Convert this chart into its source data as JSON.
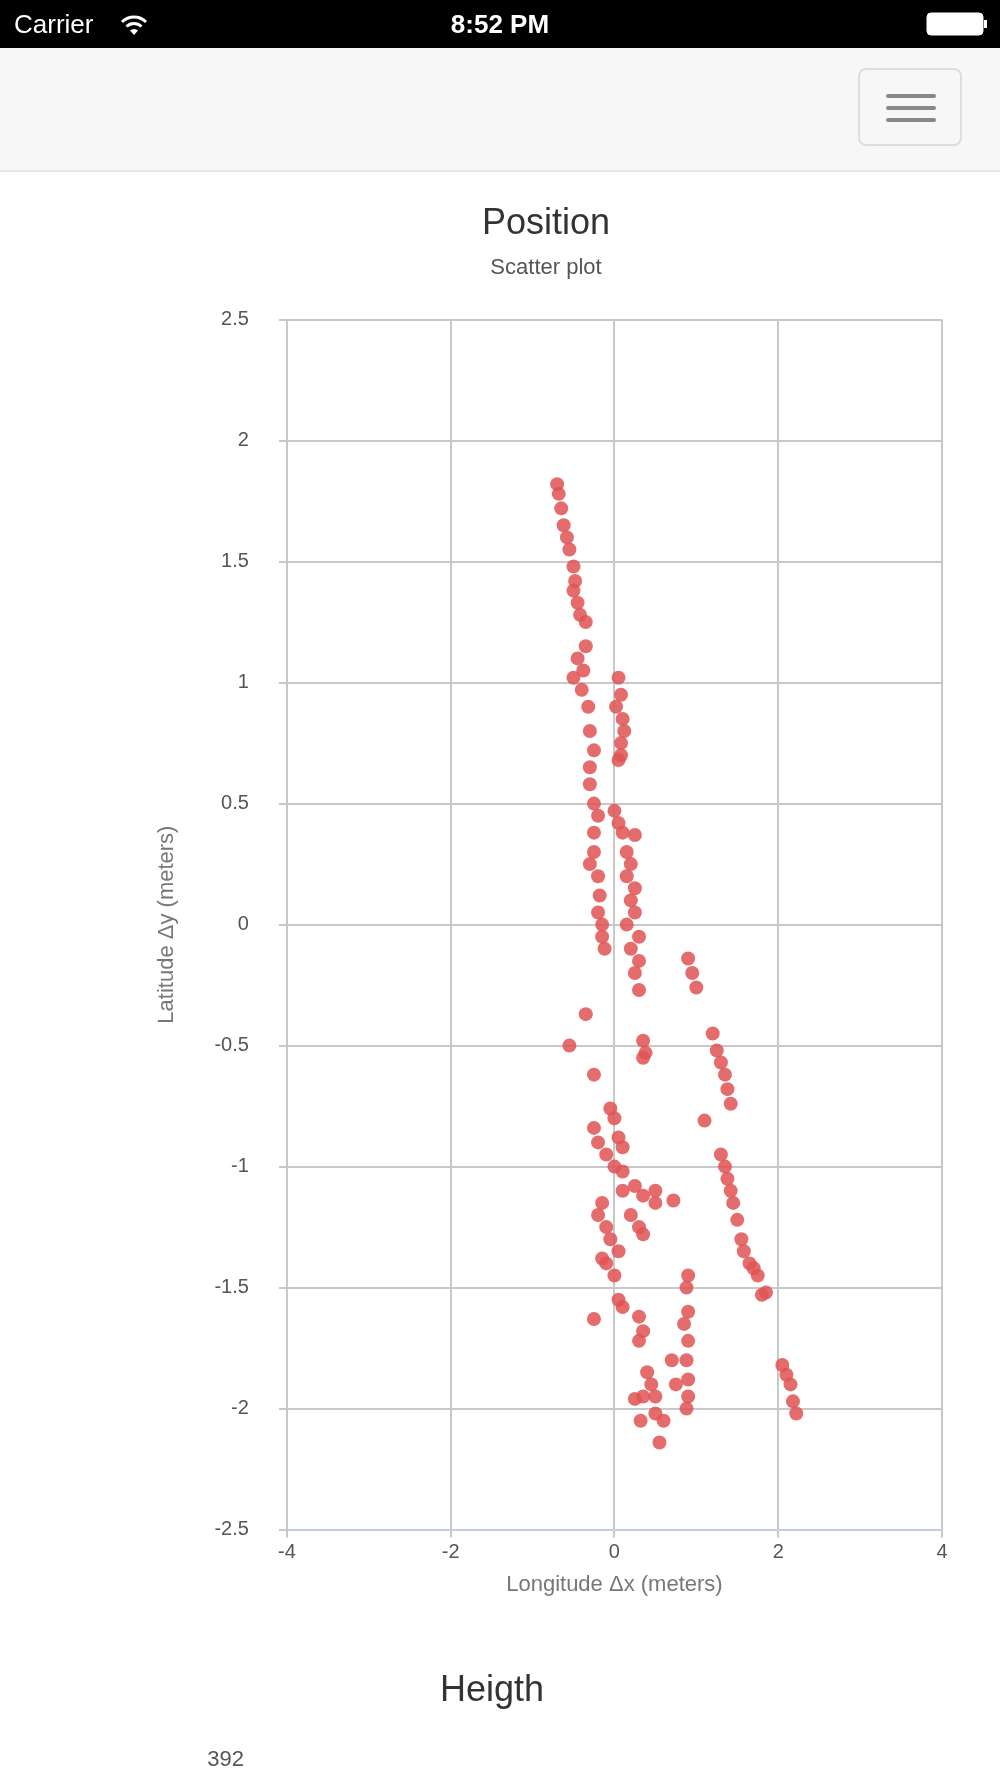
{
  "chart_data": [
    {
      "type": "other",
      "annotations": [
        "Carrier",
        "8:52 PM"
      ]
    },
    {
      "type": "scatter",
      "title": "Position",
      "subtitle": "Scatter plot",
      "xlabel": "Longitude Δx (meters)",
      "ylabel": "Latitude Δy (meters)",
      "xlim": [
        -4,
        4
      ],
      "xticks": [
        -4,
        -2,
        0,
        2,
        4
      ],
      "ylim": [
        -2.5,
        2.5
      ],
      "yticks": [
        -2.5,
        -2,
        -1.5,
        -1,
        -0.5,
        0,
        0.5,
        1,
        1.5,
        2,
        2.5
      ],
      "grid": true,
      "legend": false,
      "marker": "circle",
      "series": [
        {
          "color": "#e05252",
          "x": [
            -0.7,
            -0.68,
            -0.65,
            -0.62,
            -0.58,
            -0.55,
            -0.5,
            -0.48,
            -0.5,
            -0.45,
            -0.42,
            -0.35,
            -0.35,
            -0.45,
            -0.38,
            -0.5,
            -0.4,
            -0.32,
            -0.3,
            -0.25,
            -0.3,
            -0.3,
            -0.25,
            -0.2,
            -0.25,
            -0.25,
            -0.3,
            -0.2,
            -0.18,
            -0.2,
            -0.15,
            -0.15,
            -0.12,
            0.05,
            0.08,
            0.02,
            0.1,
            0.12,
            0.08,
            0.08,
            0.05,
            0,
            0.05,
            0.1,
            0.25,
            0.15,
            0.2,
            0.15,
            0.25,
            0.2,
            0.25,
            0.15,
            0.3,
            0.2,
            0.3,
            0.25,
            0.3,
            0.9,
            0.95,
            1.0,
            1.2,
            1.25,
            1.3,
            1.35,
            1.38,
            1.42,
            1.1,
            1.3,
            1.35,
            1.38,
            1.42,
            1.45,
            1.5,
            1.55,
            1.58,
            1.65,
            1.7,
            1.75,
            1.8,
            1.85,
            2.05,
            2.1,
            2.15,
            2.18,
            2.22,
            -0.35,
            -0.55,
            -0.25,
            0.35,
            0.38,
            0.35,
            -0.05,
            0,
            -0.25,
            -0.2,
            0.05,
            0.1,
            -0.1,
            0,
            0.1,
            -0.15,
            -0.2,
            -0.1,
            0.1,
            0.25,
            0.35,
            0.5,
            0.5,
            0.72,
            0.2,
            0.3,
            0.35,
            -0.05,
            0.05,
            -0.1,
            0,
            -0.15,
            0.05,
            0.1,
            -0.25,
            0.3,
            0.35,
            0.3,
            0.9,
            0.88,
            0.9,
            0.85,
            0.9,
            0.88,
            0.7,
            0.9,
            0.75,
            0.9,
            0.88,
            0.4,
            0.45,
            0.35,
            0.5,
            0.25,
            0.32,
            0.5,
            0.6,
            0.55
          ],
          "values": [
            1.82,
            1.78,
            1.72,
            1.65,
            1.6,
            1.55,
            1.48,
            1.42,
            1.38,
            1.33,
            1.28,
            1.25,
            1.15,
            1.1,
            1.05,
            1.02,
            0.97,
            0.9,
            0.8,
            0.72,
            0.65,
            0.58,
            0.5,
            0.45,
            0.38,
            0.3,
            0.25,
            0.2,
            0.12,
            0.05,
            0,
            -0.05,
            -0.1,
            1.02,
            0.95,
            0.9,
            0.85,
            0.8,
            0.75,
            0.7,
            0.68,
            0.47,
            0.42,
            0.38,
            0.37,
            0.3,
            0.25,
            0.2,
            0.15,
            0.1,
            0.05,
            0,
            -0.05,
            -0.1,
            -0.15,
            -0.2,
            -0.27,
            -0.14,
            -0.2,
            -0.26,
            -0.45,
            -0.52,
            -0.57,
            -0.62,
            -0.68,
            -0.74,
            -0.81,
            -0.95,
            -1.0,
            -1.05,
            -1.1,
            -1.15,
            -1.22,
            -1.3,
            -1.35,
            -1.4,
            -1.42,
            -1.45,
            -1.53,
            -1.52,
            -1.82,
            -1.86,
            -1.9,
            -1.97,
            -2.02,
            -0.37,
            -0.5,
            -0.62,
            -0.48,
            -0.53,
            -0.55,
            -0.76,
            -0.8,
            -0.84,
            -0.9,
            -0.88,
            -0.92,
            -0.95,
            -1.0,
            -1.02,
            -1.15,
            -1.2,
            -1.25,
            -1.1,
            -1.08,
            -1.12,
            -1.1,
            -1.15,
            -1.14,
            -1.2,
            -1.25,
            -1.28,
            -1.3,
            -1.35,
            -1.4,
            -1.45,
            -1.38,
            -1.55,
            -1.58,
            -1.63,
            -1.62,
            -1.68,
            -1.72,
            -1.45,
            -1.5,
            -1.6,
            -1.65,
            -1.72,
            -1.8,
            -1.8,
            -1.88,
            -1.9,
            -1.95,
            -2.0,
            -1.85,
            -1.9,
            -1.95,
            -1.95,
            -1.96,
            -2.05,
            -2.02,
            -2.05,
            -2.14
          ]
        }
      ]
    },
    {
      "type": "other",
      "title": "Heigth",
      "annotations": [
        "392"
      ]
    }
  ]
}
